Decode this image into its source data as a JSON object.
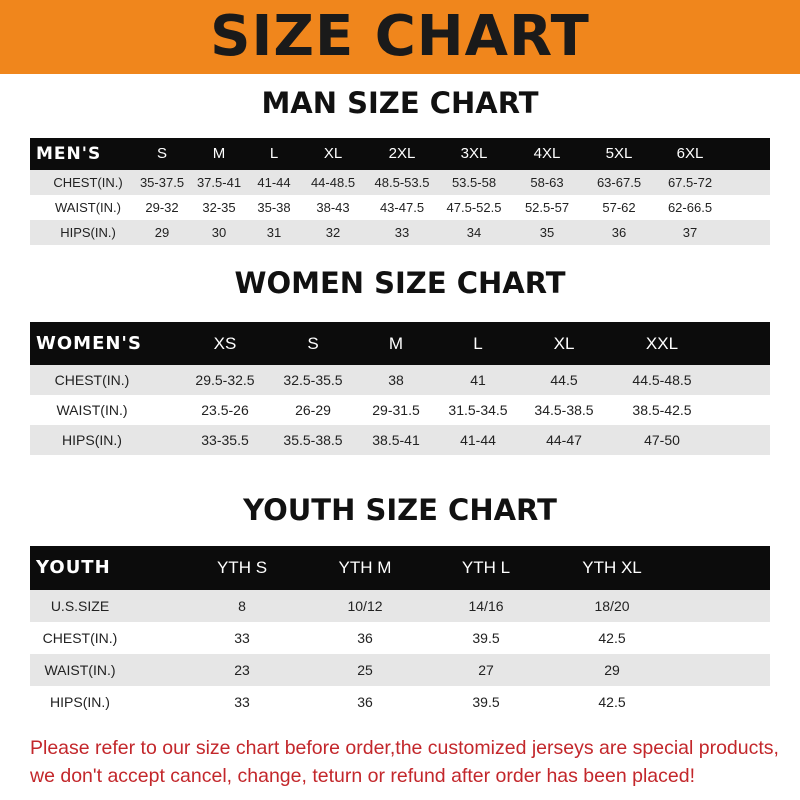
{
  "title": "SIZE CHART",
  "men": {
    "title": "MAN SIZE CHART",
    "header": [
      "MEN'S",
      "S",
      "M",
      "L",
      "XL",
      "2XL",
      "3XL",
      "4XL",
      "5XL",
      "6XL"
    ],
    "rows": [
      [
        "CHEST(IN.)",
        "35-37.5",
        "37.5-41",
        "41-44",
        "44-48.5",
        "48.5-53.5",
        "53.5-58",
        "58-63",
        "63-67.5",
        "67.5-72"
      ],
      [
        "WAIST(IN.)",
        "29-32",
        "32-35",
        "35-38",
        "38-43",
        "43-47.5",
        "47.5-52.5",
        "52.5-57",
        "57-62",
        "62-66.5"
      ],
      [
        "HIPS(IN.)",
        "29",
        "30",
        "31",
        "32",
        "33",
        "34",
        "35",
        "36",
        "37"
      ]
    ]
  },
  "women": {
    "title": "WOMEN SIZE CHART",
    "header": [
      "WOMEN'S",
      "XS",
      "S",
      "M",
      "L",
      "XL",
      "XXL"
    ],
    "rows": [
      [
        "CHEST(IN.)",
        "29.5-32.5",
        "32.5-35.5",
        "38",
        "41",
        "44.5",
        "44.5-48.5"
      ],
      [
        "WAIST(IN.)",
        "23.5-26",
        "26-29",
        "29-31.5",
        "31.5-34.5",
        "34.5-38.5",
        "38.5-42.5"
      ],
      [
        "HIPS(IN.)",
        "33-35.5",
        "35.5-38.5",
        "38.5-41",
        "41-44",
        "44-47",
        "47-50"
      ]
    ]
  },
  "youth": {
    "title": "YOUTH SIZE CHART",
    "header": [
      "YOUTH",
      "YTH S",
      "YTH M",
      "YTH L",
      "YTH XL"
    ],
    "rows": [
      [
        "U.S.SIZE",
        "8",
        "10/12",
        "14/16",
        "18/20"
      ],
      [
        "CHEST(IN.)",
        "33",
        "36",
        "39.5",
        "42.5"
      ],
      [
        "WAIST(IN.)",
        "23",
        "25",
        "27",
        "29"
      ],
      [
        "HIPS(IN.)",
        "33",
        "36",
        "39.5",
        "42.5"
      ]
    ]
  },
  "footer": {
    "line1": "Please refer to our size chart before order,the customized jerseys are special products,",
    "line2": "we don't accept cancel, change, teturn or refund after order has been placed!"
  },
  "colors": {
    "banner": "#f0861c",
    "header_row": "#0c0c0c",
    "stripe": "#e6e6e6",
    "notice": "#c3272b"
  }
}
